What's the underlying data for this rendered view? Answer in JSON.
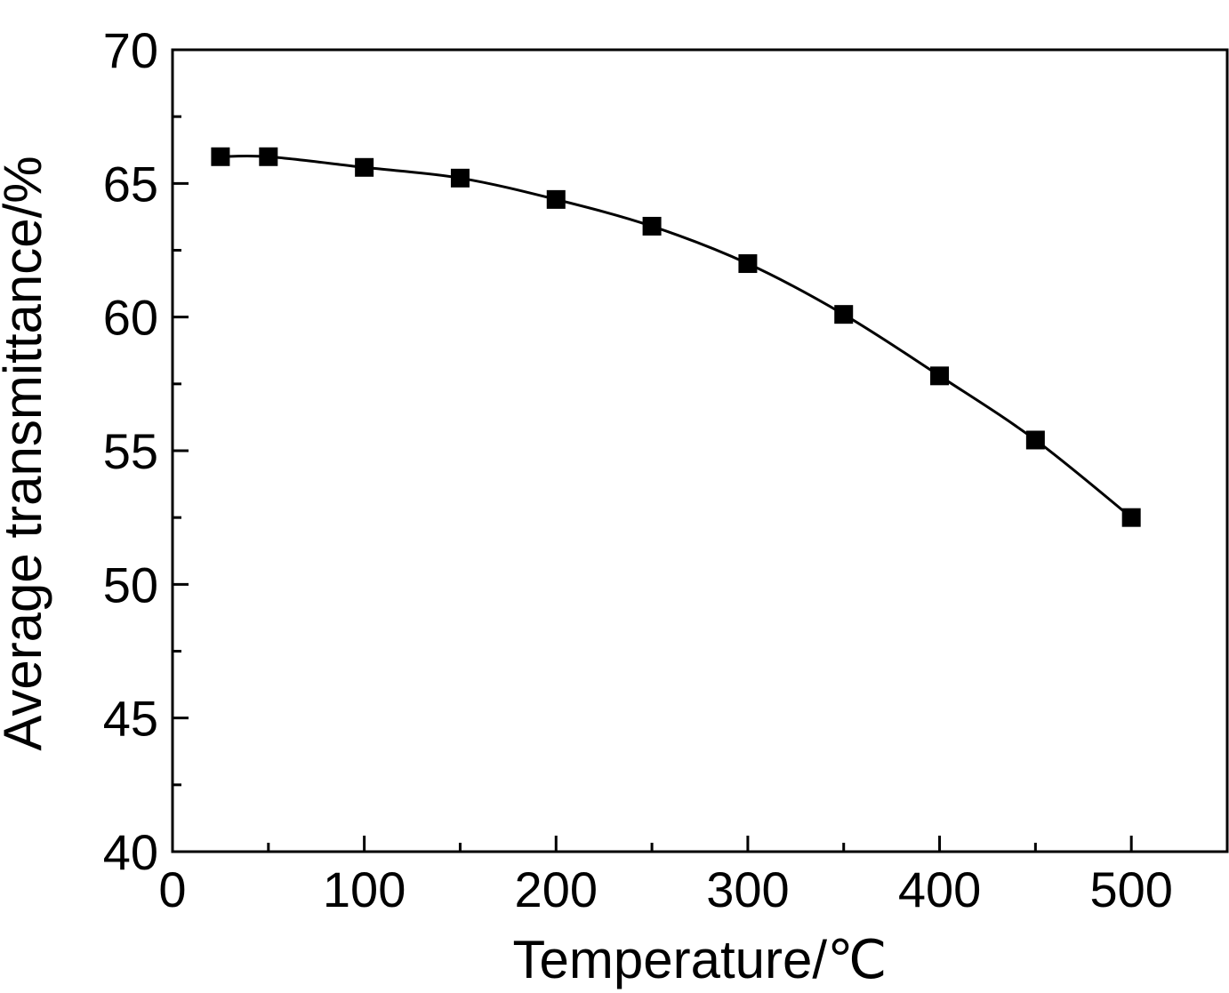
{
  "chart_data": {
    "type": "line",
    "title": "",
    "xlabel": "Temperature/℃",
    "ylabel": "Average transmittance/%",
    "xlim": [
      0,
      550
    ],
    "ylim": [
      40,
      70
    ],
    "xticks": [
      0,
      100,
      200,
      300,
      400,
      500
    ],
    "yticks": [
      40,
      45,
      50,
      55,
      60,
      65,
      70
    ],
    "x_minor_step": 50,
    "y_minor_step": 2.5,
    "grid": false,
    "legend": "none",
    "marker": "square",
    "colors": {
      "line": "#000000",
      "marker": "#000000",
      "axes": "#000000"
    },
    "series": [
      {
        "x": [
          25,
          50,
          100,
          150,
          200,
          250,
          300,
          350,
          400,
          450,
          500
        ],
        "values": [
          66.0,
          66.0,
          65.6,
          65.2,
          64.4,
          63.4,
          62.0,
          60.1,
          57.8,
          55.4,
          52.5
        ]
      }
    ]
  }
}
